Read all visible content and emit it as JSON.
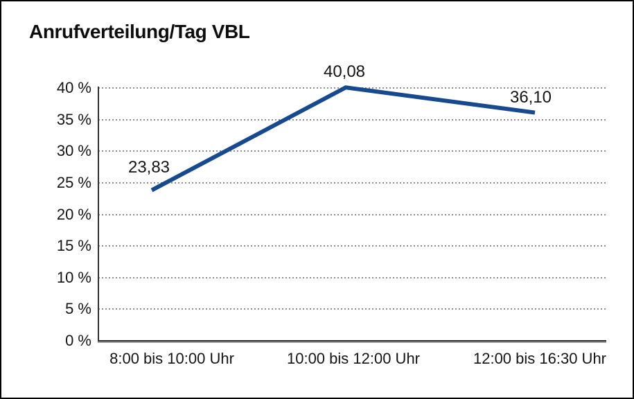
{
  "window": {
    "background": "#ffffff",
    "border_color": "#000000"
  },
  "chart_data": {
    "type": "line",
    "title": "Anrufverteilung/Tag VBL",
    "categories": [
      "8:00 bis 10:00 Uhr",
      "10:00 bis 12:00 Uhr",
      "12:00 bis 16:30 Uhr"
    ],
    "values": [
      23.83,
      40.08,
      36.1
    ],
    "point_labels": [
      "23,83",
      "40,08",
      "36,10"
    ],
    "y_tick_values": [
      0,
      5,
      10,
      15,
      20,
      25,
      30,
      35,
      40
    ],
    "y_tick_labels": [
      "0 %",
      "5 %",
      "10 %",
      "15 %",
      "20 %",
      "25 %",
      "30 %",
      "35 %",
      "40 %"
    ],
    "ylim": [
      0,
      40
    ],
    "xlabel": "",
    "ylabel": "",
    "grid": "horizontal-dotted",
    "legend": "none",
    "line_color": "#17498F",
    "label_color": "#141414",
    "grid_color": "#8d8d8d"
  }
}
